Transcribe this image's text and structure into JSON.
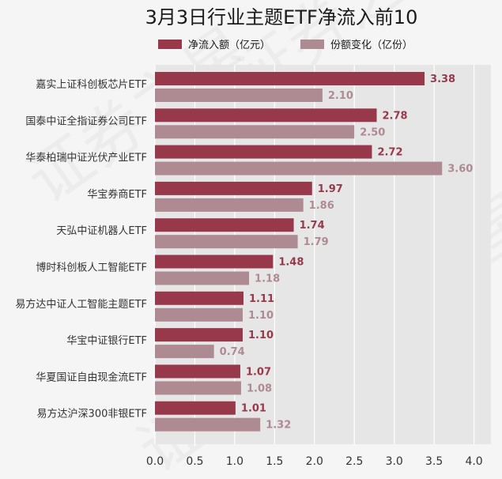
{
  "chart_data": {
    "type": "bar",
    "orientation": "horizontal",
    "title": "3月3日行业主题ETF净流入前10",
    "categories": [
      "嘉实上证科创板芯片ETF",
      "国泰中证全指证券公司ETF",
      "华泰柏瑞中证光伏产业ETF",
      "华宝券商ETF",
      "天弘中证机器人ETF",
      "博时科创板人工智能ETF",
      "易方达中证人工智能主题ETF",
      "华宝中证银行ETF",
      "华夏国证自由现金流ETF",
      "易方达沪深300非银ETF"
    ],
    "series": [
      {
        "name": "净流入额（亿元）",
        "color": "#98394b",
        "values": [
          3.38,
          2.78,
          2.72,
          1.97,
          1.74,
          1.48,
          1.11,
          1.1,
          1.07,
          1.01
        ],
        "labels": [
          "3.38",
          "2.78",
          "2.72",
          "1.97",
          "1.74",
          "1.48",
          "1.11",
          "1.10",
          "1.07",
          "1.01"
        ]
      },
      {
        "name": "份额变化（亿份）",
        "color": "#ae8a93",
        "values": [
          2.1,
          2.5,
          3.6,
          1.86,
          1.79,
          1.18,
          1.1,
          0.74,
          1.08,
          1.32
        ],
        "labels": [
          "2.10",
          "2.50",
          "3.60",
          "1.86",
          "1.79",
          "1.18",
          "1.10",
          "0.74",
          "1.08",
          "1.32"
        ]
      }
    ],
    "xlim": [
      0,
      4.2
    ],
    "xticks": [
      0.0,
      0.5,
      1.0,
      1.5,
      2.0,
      2.5,
      3.0,
      3.5,
      4.0
    ],
    "xtick_labels": [
      "0.0",
      "0.5",
      "1.0",
      "1.5",
      "2.0",
      "2.5",
      "3.0",
      "3.5",
      "4.0"
    ],
    "grid": "vertical",
    "legend": "top",
    "plot_background": "#e6e6e6",
    "watermark": "证券之星"
  }
}
